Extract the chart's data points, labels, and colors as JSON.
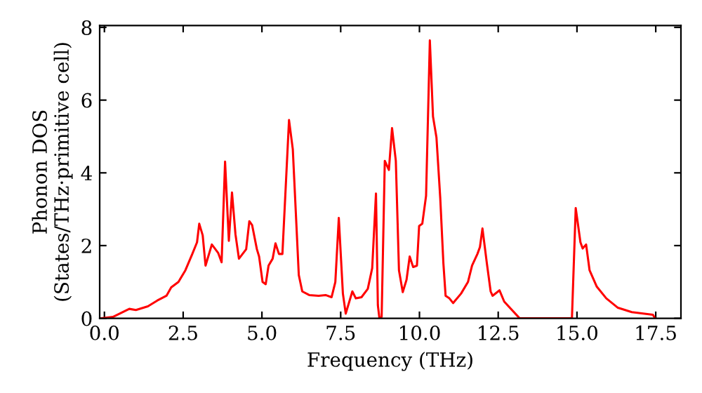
{
  "chart_data": {
    "type": "line",
    "xlabel": "Frequency (THz)",
    "ylabel": "Phonon DOS\n(States/THz·primitive cell)",
    "xlim": [
      -0.15,
      18.3
    ],
    "ylim": [
      0,
      8.05
    ],
    "xticks": [
      {
        "value": 0,
        "label": "0.0"
      },
      {
        "value": 2.5,
        "label": "2.5"
      },
      {
        "value": 5,
        "label": "5.0"
      },
      {
        "value": 7.5,
        "label": "7.5"
      },
      {
        "value": 10,
        "label": "10.0"
      },
      {
        "value": 12.5,
        "label": "12.5"
      },
      {
        "value": 15,
        "label": "15.0"
      },
      {
        "value": 17.5,
        "label": "17.5"
      }
    ],
    "yticks": [
      0,
      2,
      4,
      6,
      8
    ],
    "grid": false,
    "legend": false,
    "marker": "none",
    "line_style": "solid",
    "series": [
      {
        "color": "#ff0000",
        "x": [
          -0.1,
          0.27,
          0.79,
          1.0,
          1.38,
          1.68,
          1.97,
          2.12,
          2.35,
          2.57,
          2.79,
          2.94,
          3.01,
          3.12,
          3.21,
          3.41,
          3.61,
          3.72,
          3.83,
          3.95,
          4.05,
          4.16,
          4.27,
          4.5,
          4.6,
          4.69,
          4.84,
          4.91,
          5.02,
          5.12,
          5.21,
          5.34,
          5.43,
          5.54,
          5.65,
          5.86,
          5.98,
          6.17,
          6.28,
          6.5,
          6.8,
          7.02,
          7.21,
          7.33,
          7.44,
          7.57,
          7.66,
          7.87,
          7.98,
          8.16,
          8.36,
          8.5,
          8.62,
          8.68,
          8.73,
          8.8,
          8.9,
          9.03,
          9.13,
          9.25,
          9.35,
          9.47,
          9.59,
          9.69,
          9.8,
          9.92,
          9.99,
          10.09,
          10.21,
          10.33,
          10.43,
          10.54,
          10.66,
          10.76,
          10.83,
          10.95,
          11.07,
          11.32,
          11.54,
          11.67,
          11.84,
          11.92,
          12.0,
          12.14,
          12.26,
          12.32,
          12.54,
          12.69,
          13.18,
          14.84,
          14.96,
          15.11,
          15.18,
          15.29,
          15.4,
          15.63,
          15.93,
          16.3,
          16.74,
          17.41,
          17.48
        ],
        "values": [
          0,
          0.04,
          0.26,
          0.23,
          0.33,
          0.49,
          0.62,
          0.85,
          1.0,
          1.32,
          1.77,
          2.09,
          2.6,
          2.28,
          1.45,
          2.03,
          1.8,
          1.54,
          4.31,
          2.13,
          3.46,
          2.31,
          1.64,
          1.9,
          2.67,
          2.56,
          1.9,
          1.7,
          1.0,
          0.94,
          1.45,
          1.64,
          2.06,
          1.77,
          1.77,
          5.45,
          4.65,
          1.19,
          0.74,
          0.64,
          0.62,
          0.64,
          0.58,
          1.0,
          2.76,
          0.68,
          0.13,
          0.74,
          0.55,
          0.58,
          0.81,
          1.38,
          3.43,
          0.36,
          0,
          0.04,
          4.33,
          4.08,
          5.23,
          4.33,
          1.32,
          0.72,
          1.06,
          1.7,
          1.41,
          1.45,
          2.54,
          2.6,
          3.37,
          7.64,
          5.55,
          4.97,
          3.31,
          1.51,
          0.62,
          0.55,
          0.42,
          0.68,
          1.0,
          1.45,
          1.77,
          1.96,
          2.47,
          1.51,
          0.74,
          0.62,
          0.77,
          0.46,
          0,
          0,
          3.03,
          2.09,
          1.92,
          2.03,
          1.32,
          0.87,
          0.55,
          0.29,
          0.17,
          0.1,
          0
        ]
      }
    ]
  }
}
